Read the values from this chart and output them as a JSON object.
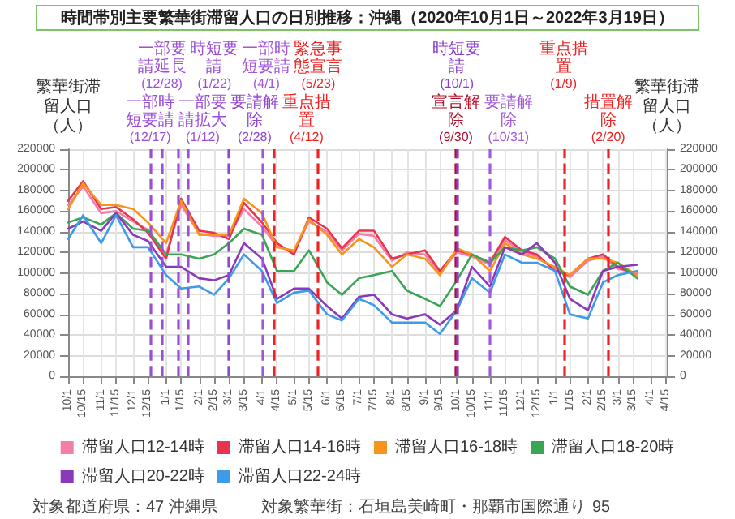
{
  "chart_data": {
    "type": "line",
    "title": "時間帯別主要繁華街滞留人口の日別推移：沖縄（2020年10月1日～2022年3月19日）",
    "ylabel": "繁華街滞留人口（人）",
    "y2label": "繁華街滞留人口（人）",
    "x": [
      "2020-10-01",
      "2020-10-15",
      "2020-11-01",
      "2020-11-15",
      "2020-12-01",
      "2020-12-15",
      "2021-01-01",
      "2021-01-15",
      "2021-02-01",
      "2021-02-15",
      "2021-03-01",
      "2021-03-15",
      "2021-04-01",
      "2021-04-15",
      "2021-05-01",
      "2021-05-15",
      "2021-06-01",
      "2021-06-15",
      "2021-07-01",
      "2021-07-15",
      "2021-08-01",
      "2021-08-15",
      "2021-09-01",
      "2021-09-15",
      "2021-10-01",
      "2021-10-15",
      "2021-11-01",
      "2021-11-15",
      "2021-12-01",
      "2021-12-15",
      "2022-01-01",
      "2022-01-15",
      "2022-02-01",
      "2022-02-15",
      "2022-03-01",
      "2022-03-19"
    ],
    "series": [
      {
        "name": "滞留人口12-14時",
        "color": "#f27ea9",
        "values": [
          166000,
          184000,
          158000,
          160000,
          150000,
          142000,
          118000,
          166000,
          138000,
          136000,
          136000,
          162000,
          145000,
          126000,
          120000,
          150000,
          140000,
          122000,
          138000,
          136000,
          112000,
          120000,
          118000,
          100000,
          120000,
          116000,
          108000,
          132000,
          120000,
          116000,
          104000,
          96000,
          112000,
          116000,
          104000,
          100000
        ]
      },
      {
        "name": "滞留人口14-16時",
        "color": "#e8344e",
        "values": [
          170000,
          189000,
          162000,
          164000,
          152000,
          139000,
          114000,
          172000,
          141000,
          139000,
          133000,
          168000,
          149000,
          129000,
          118000,
          154000,
          143000,
          124000,
          141000,
          141000,
          114000,
          118000,
          122000,
          102000,
          122000,
          118000,
          110000,
          135000,
          122000,
          118000,
          102000,
          98000,
          114000,
          118000,
          106000,
          98000
        ]
      },
      {
        "name": "滞留人口16-18時",
        "color": "#f7941d",
        "values": [
          162000,
          187000,
          166000,
          166000,
          162000,
          149000,
          129000,
          170000,
          137000,
          137000,
          137000,
          172000,
          158000,
          125000,
          122000,
          152000,
          137000,
          118000,
          133000,
          125000,
          106000,
          118000,
          114000,
          98000,
          124000,
          118000,
          102000,
          129000,
          118000,
          114000,
          106000,
          98000,
          114000,
          114000,
          110000,
          98000
        ]
      },
      {
        "name": "滞留人口18-20時",
        "color": "#3aa655",
        "values": [
          149000,
          154000,
          147000,
          158000,
          143000,
          141000,
          118000,
          118000,
          114000,
          118000,
          129000,
          143000,
          137000,
          102000,
          102000,
          122000,
          91000,
          79000,
          95000,
          98000,
          102000,
          83000,
          75000,
          68000,
          93000,
          118000,
          110000,
          125000,
          122000,
          125000,
          114000,
          87000,
          79000,
          102000,
          110000,
          95000
        ]
      },
      {
        "name": "滞留人口20-22時",
        "color": "#8a3ab9",
        "values": [
          143000,
          150000,
          141000,
          158000,
          137000,
          131000,
          106000,
          106000,
          95000,
          93000,
          98000,
          129000,
          114000,
          75000,
          85000,
          85000,
          68000,
          56000,
          77000,
          79000,
          60000,
          56000,
          60000,
          50000,
          64000,
          106000,
          87000,
          125000,
          118000,
          129000,
          110000,
          75000,
          64000,
          102000,
          106000,
          108000
        ]
      },
      {
        "name": "滞留人口22-24時",
        "color": "#3d9be9",
        "values": [
          133000,
          156000,
          129000,
          156000,
          125000,
          125000,
          98000,
          85000,
          87000,
          79000,
          95000,
          118000,
          102000,
          71000,
          81000,
          83000,
          60000,
          54000,
          75000,
          69000,
          52000,
          52000,
          52000,
          41000,
          64000,
          95000,
          81000,
          118000,
          110000,
          110000,
          102000,
          60000,
          56000,
          91000,
          98000,
          102000
        ]
      }
    ],
    "xlim": [
      "2020-10-01",
      "2022-04-16"
    ],
    "xticks": [
      {
        "value": "2020-10-01",
        "label": "10/1"
      },
      {
        "value": "2020-10-15",
        "label": "10/15"
      },
      {
        "value": "2020-11-01",
        "label": "11/1"
      },
      {
        "value": "2020-11-15",
        "label": "11/15"
      },
      {
        "value": "2020-12-01",
        "label": "12/1"
      },
      {
        "value": "2020-12-15",
        "label": "12/15"
      },
      {
        "value": "2021-01-01",
        "label": "1/1"
      },
      {
        "value": "2021-01-15",
        "label": "1/15"
      },
      {
        "value": "2021-02-01",
        "label": "2/1"
      },
      {
        "value": "2021-02-15",
        "label": "2/15"
      },
      {
        "value": "2021-03-01",
        "label": "3/1"
      },
      {
        "value": "2021-03-15",
        "label": "3/15"
      },
      {
        "value": "2021-04-01",
        "label": "4/1"
      },
      {
        "value": "2021-04-15",
        "label": "4/15"
      },
      {
        "value": "2021-05-01",
        "label": "5/1"
      },
      {
        "value": "2021-05-15",
        "label": "5/15"
      },
      {
        "value": "2021-06-01",
        "label": "6/1"
      },
      {
        "value": "2021-06-15",
        "label": "6/15"
      },
      {
        "value": "2021-07-01",
        "label": "7/1"
      },
      {
        "value": "2021-07-15",
        "label": "7/15"
      },
      {
        "value": "2021-08-01",
        "label": "8/1"
      },
      {
        "value": "2021-08-15",
        "label": "8/15"
      },
      {
        "value": "2021-09-01",
        "label": "9/1"
      },
      {
        "value": "2021-09-15",
        "label": "9/15"
      },
      {
        "value": "2021-10-01",
        "label": "10/1"
      },
      {
        "value": "2021-10-15",
        "label": "10/15"
      },
      {
        "value": "2021-11-01",
        "label": "11/1"
      },
      {
        "value": "2021-11-15",
        "label": "11/15"
      },
      {
        "value": "2021-12-01",
        "label": "12/1"
      },
      {
        "value": "2021-12-15",
        "label": "12/15"
      },
      {
        "value": "2022-01-01",
        "label": "1/1"
      },
      {
        "value": "2022-01-15",
        "label": "1/15"
      },
      {
        "value": "2022-02-01",
        "label": "2/1"
      },
      {
        "value": "2022-02-15",
        "label": "2/15"
      },
      {
        "value": "2022-03-01",
        "label": "3/1"
      },
      {
        "value": "2022-03-15",
        "label": "3/15"
      },
      {
        "value": "2022-04-01",
        "label": "4/1"
      },
      {
        "value": "2022-04-15",
        "label": "4/15"
      }
    ],
    "ylim": [
      0,
      220000
    ],
    "yticks": [
      0,
      20000,
      40000,
      60000,
      80000,
      100000,
      120000,
      140000,
      160000,
      180000,
      200000,
      220000
    ],
    "y2lim": [
      0,
      220000
    ],
    "y2ticks": [
      0,
      20000,
      40000,
      60000,
      80000,
      100000,
      120000,
      140000,
      160000,
      180000,
      200000,
      220000
    ],
    "ref_lines": [
      {
        "axis": "x",
        "value": "2020-12-17",
        "label": "一部時短要請(12/17)",
        "color": "#9b4fd6",
        "line_style": "dashed"
      },
      {
        "axis": "x",
        "value": "2020-12-28",
        "label": "一部要請延長(12/28)",
        "color": "#9b4fd6",
        "line_style": "dashed"
      },
      {
        "axis": "x",
        "value": "2021-01-12",
        "label": "一部要請拡大(1/12)",
        "color": "#9b4fd6",
        "line_style": "dashed"
      },
      {
        "axis": "x",
        "value": "2021-01-22",
        "label": "時短要請(1/22)",
        "color": "#9b4fd6",
        "line_style": "dashed"
      },
      {
        "axis": "x",
        "value": "2021-02-28",
        "label": "要請解除(2/28)",
        "color": "#9146d0",
        "line_style": "dashed"
      },
      {
        "axis": "x",
        "value": "2021-04-01",
        "label": "一部時短要請(4/1)",
        "color": "#a055dc",
        "line_style": "dashed"
      },
      {
        "axis": "x",
        "value": "2021-04-12",
        "label": "重点措置(4/12)",
        "color": "#ee2222",
        "line_style": "dashed"
      },
      {
        "axis": "x",
        "value": "2021-05-23",
        "label": "緊急事態宣言(5/23)",
        "color": "#ee2222",
        "line_style": "dashed"
      },
      {
        "axis": "x",
        "value": "2021-09-30",
        "label": "宣言解除(9/30)",
        "color": "#b0102a",
        "line_style": "dashed"
      },
      {
        "axis": "x",
        "value": "2021-10-01",
        "label": "時短要請(10/1)",
        "color": "#8c3fcc",
        "line_style": "dashed"
      },
      {
        "axis": "x",
        "value": "2021-10-31",
        "label": "要請解除(10/31)",
        "color": "#a35ad8",
        "line_style": "dashed"
      },
      {
        "axis": "x",
        "value": "2022-01-09",
        "label": "重点措置(1/9)",
        "color": "#ee2222",
        "line_style": "dashed"
      },
      {
        "axis": "x",
        "value": "2022-02-20",
        "label": "措置解除(2/20)",
        "color": "#ee2222",
        "line_style": "dashed"
      }
    ],
    "grid": true,
    "legend": "bottom",
    "line_style": "solid",
    "annotations": [
      "対象都道府県：47 沖縄県",
      "対象繁華街：石垣島美崎町・那覇市国際通り",
      "95"
    ]
  }
}
